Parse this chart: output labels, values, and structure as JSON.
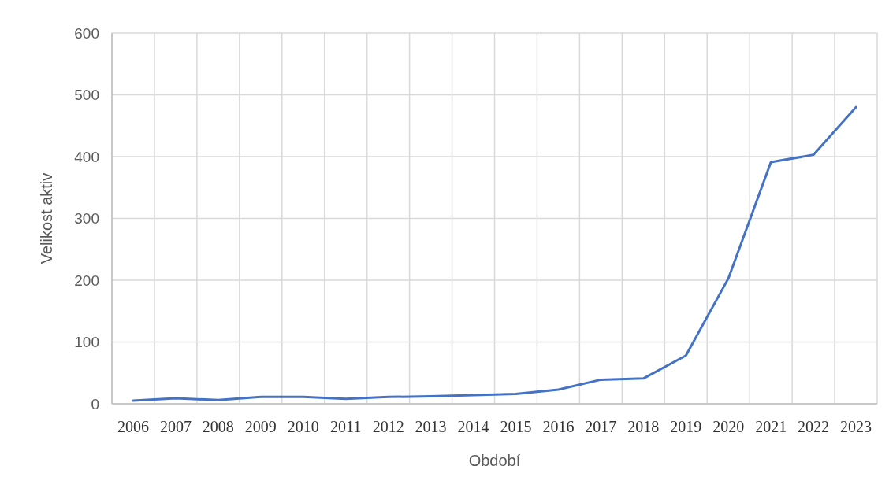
{
  "chart_data": {
    "type": "line",
    "xlabel": "Období",
    "ylabel": "Velikost aktiv",
    "categories": [
      "2006",
      "2007",
      "2008",
      "2009",
      "2010",
      "2011",
      "2012",
      "2013",
      "2014",
      "2015",
      "2016",
      "2017",
      "2018",
      "2019",
      "2020",
      "2021",
      "2022",
      "2023"
    ],
    "series": [
      {
        "color": "#4472c4",
        "values": [
          5,
          9,
          6,
          11,
          11,
          8,
          11,
          12,
          14,
          16,
          23,
          39,
          41,
          78,
          203,
          391,
          403,
          480
        ]
      }
    ],
    "ylim": [
      0,
      600
    ],
    "yticks": [
      0,
      100,
      200,
      300,
      400,
      500,
      600
    ],
    "grid": true,
    "marker": "none",
    "line_style": "solid"
  }
}
